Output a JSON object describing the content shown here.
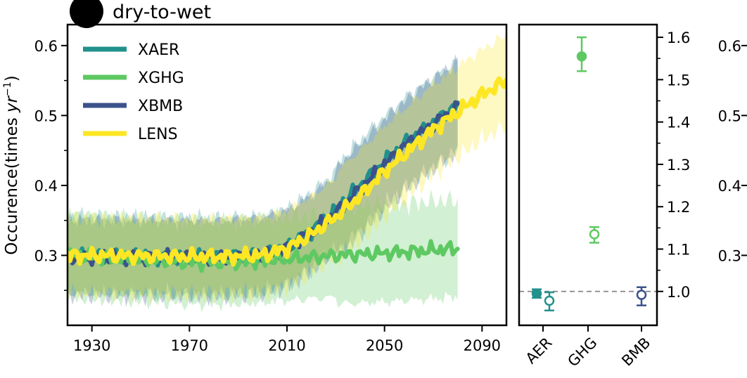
{
  "panel_label": "dry-to-wet",
  "chart_data": [
    {
      "type": "line",
      "ylabel_main": "Occurence(times ",
      "ylabel_italic": "yr",
      "ylabel_sup": "−1",
      "ylabel_close": ")",
      "xlim": [
        1920,
        2100
      ],
      "ylim": [
        0.2,
        0.63
      ],
      "x_ticks": [
        1930,
        1970,
        2010,
        2050,
        2090
      ],
      "y_ticks": [
        0.3,
        0.4,
        0.5,
        0.6
      ],
      "y_tick_labels": [
        "0.3",
        "0.4",
        "0.5",
        "0.6"
      ],
      "x_tick_labels": [
        "1930",
        "1970",
        "2010",
        "2050",
        "2090"
      ],
      "legend_position": "top-left",
      "series": [
        {
          "name": "XAER",
          "color": "#21918c",
          "x_range": [
            1920,
            2080
          ],
          "shade": 0.045,
          "x": [
            1920,
            1980,
            2000,
            2010,
            2020,
            2030,
            2040,
            2050,
            2060,
            2070,
            2080
          ],
          "y": [
            0.3,
            0.297,
            0.3,
            0.312,
            0.335,
            0.365,
            0.4,
            0.435,
            0.465,
            0.49,
            0.515
          ]
        },
        {
          "name": "XGHG",
          "color": "#5ec962",
          "x_range": [
            1920,
            2080
          ],
          "shade": 0.05,
          "x": [
            1920,
            1970,
            1990,
            2010,
            2030,
            2050,
            2080
          ],
          "y": [
            0.3,
            0.29,
            0.29,
            0.295,
            0.3,
            0.303,
            0.31
          ]
        },
        {
          "name": "XBMB",
          "color": "#3b528b",
          "x_range": [
            1920,
            2080
          ],
          "shade": 0.045,
          "x": [
            1920,
            1980,
            2000,
            2010,
            2020,
            2030,
            2040,
            2050,
            2060,
            2070,
            2080
          ],
          "y": [
            0.298,
            0.296,
            0.3,
            0.31,
            0.332,
            0.36,
            0.395,
            0.43,
            0.462,
            0.488,
            0.512
          ]
        },
        {
          "name": "LENS",
          "color": "#fde725",
          "x_range": [
            1920,
            2100
          ],
          "shade": 0.045,
          "x": [
            1920,
            1980,
            2000,
            2010,
            2020,
            2030,
            2040,
            2050,
            2060,
            2070,
            2080,
            2090,
            2100
          ],
          "y": [
            0.3,
            0.298,
            0.3,
            0.31,
            0.33,
            0.355,
            0.385,
            0.42,
            0.45,
            0.48,
            0.505,
            0.53,
            0.55
          ]
        }
      ]
    },
    {
      "type": "scatter",
      "categories": [
        "AER",
        "GHG",
        "BMB"
      ],
      "ylim": [
        0.92,
        1.63
      ],
      "y_ticks": [
        1.0,
        1.1,
        1.2,
        1.3,
        1.4,
        1.5,
        1.6
      ],
      "y_tick_labels": [
        "1.0",
        "1.1",
        "1.2",
        "1.3",
        "1.4",
        "1.5",
        "1.6"
      ],
      "reference_line": 1.0,
      "points": [
        {
          "category": "AER",
          "offset": -0.18,
          "filled": true,
          "value": 0.995,
          "err": [
            0.985,
            1.005
          ],
          "color": "#21918c"
        },
        {
          "category": "AER",
          "offset": 0.18,
          "filled": false,
          "value": 0.978,
          "err": [
            0.955,
            0.998
          ],
          "color": "#21918c"
        },
        {
          "category": "GHG",
          "offset": -0.18,
          "filled": true,
          "value": 1.555,
          "err": [
            1.52,
            1.6
          ],
          "color": "#5ec962"
        },
        {
          "category": "GHG",
          "offset": 0.18,
          "filled": false,
          "value": 1.135,
          "err": [
            1.115,
            1.152
          ],
          "color": "#5ec962"
        },
        {
          "category": "BMB",
          "offset": 0.0,
          "filled": false,
          "value": 0.992,
          "err": [
            0.967,
            1.01
          ],
          "color": "#3b528b"
        }
      ]
    },
    {
      "type": "axis",
      "y_tick_labels": [
        "0.6",
        "0.5",
        "0.4",
        "0.3"
      ],
      "y_ticks": [
        0.6,
        0.5,
        0.4,
        0.3
      ],
      "ylim": [
        0.2,
        0.63
      ]
    }
  ]
}
